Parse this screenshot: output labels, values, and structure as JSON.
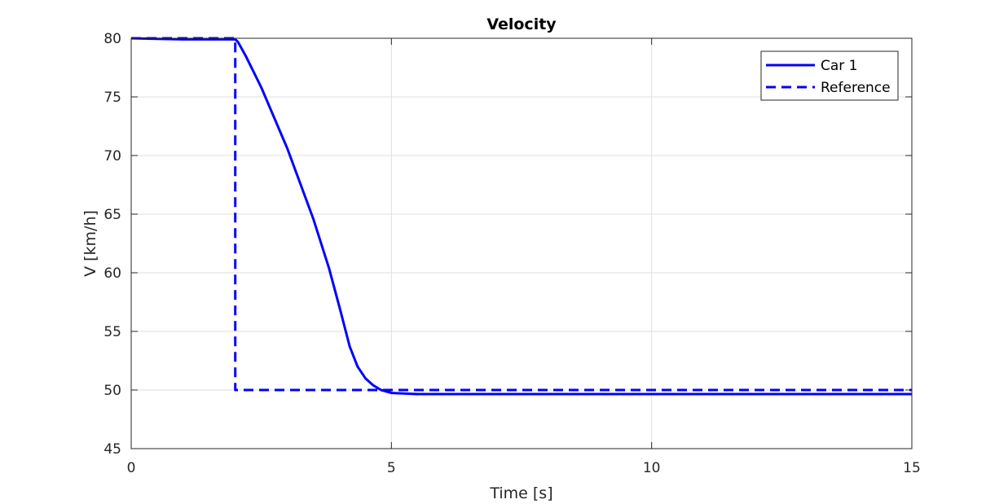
{
  "chart_data": {
    "type": "line",
    "title": "Velocity",
    "xlabel": "Time [s]",
    "ylabel": "V [km/h]",
    "xlim": [
      0,
      15
    ],
    "ylim": [
      45,
      80
    ],
    "xticks": [
      "0",
      "5",
      "10",
      "15"
    ],
    "yticks": [
      "45",
      "50",
      "55",
      "60",
      "65",
      "70",
      "75",
      "80"
    ],
    "grid": true,
    "legend_position": "top-right",
    "series": [
      {
        "name": "Car 1",
        "style": "solid",
        "color": "#0000ff",
        "x": [
          0,
          0.5,
          1,
          1.5,
          2.0,
          2.05,
          2.2,
          2.5,
          3.0,
          3.5,
          3.8,
          4.0,
          4.2,
          4.35,
          4.5,
          4.65,
          4.8,
          5.0,
          5.5,
          6,
          8,
          10,
          12,
          15
        ],
        "y": [
          80,
          79.95,
          79.9,
          79.9,
          79.9,
          79.7,
          78.5,
          75.8,
          70.6,
          64.6,
          60.4,
          57.1,
          53.7,
          52.0,
          51.0,
          50.4,
          50.0,
          49.75,
          49.65,
          49.65,
          49.65,
          49.65,
          49.65,
          49.65
        ]
      },
      {
        "name": "Reference",
        "style": "dashed",
        "color": "#0000ff",
        "x": [
          0,
          2,
          2,
          15
        ],
        "y": [
          80,
          80,
          50,
          50
        ]
      }
    ]
  }
}
